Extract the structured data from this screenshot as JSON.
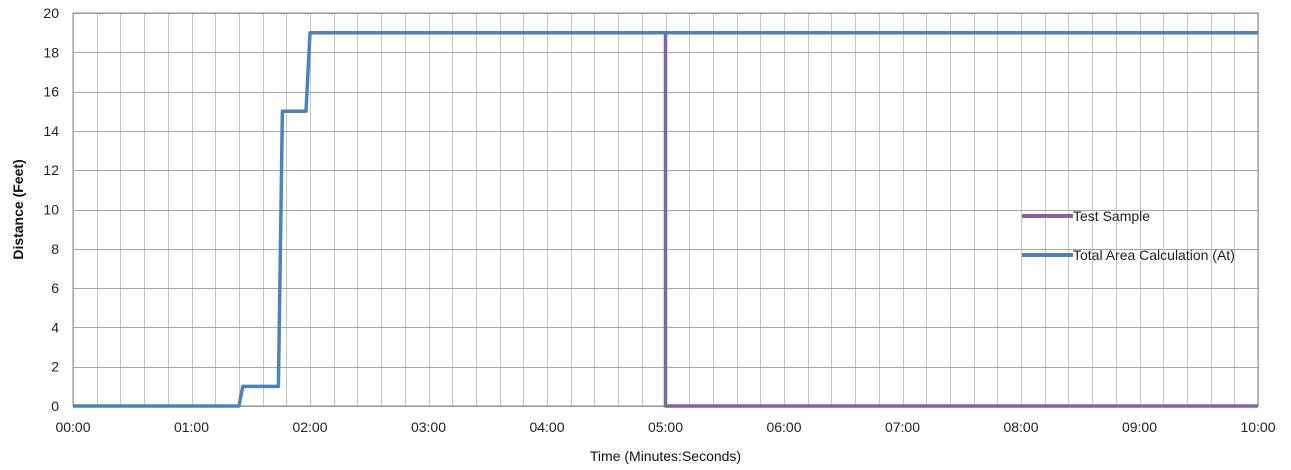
{
  "chart_data": {
    "type": "line",
    "title": "",
    "xlabel": "Time (Minutes:Seconds)",
    "ylabel": "Distance (Feet)",
    "xlim": [
      0,
      600
    ],
    "ylim": [
      0,
      20
    ],
    "x_tick_labels": [
      "00:00",
      "01:00",
      "02:00",
      "03:00",
      "04:00",
      "05:00",
      "06:00",
      "07:00",
      "08:00",
      "09:00",
      "10:00"
    ],
    "y_tick_labels": [
      "0",
      "2",
      "4",
      "6",
      "8",
      "10",
      "12",
      "14",
      "16",
      "18",
      "20"
    ],
    "grid": true,
    "legend_position": "right",
    "series": [
      {
        "name": "Test Sample",
        "color": "#8064A2",
        "x": [
          300,
          300,
          600
        ],
        "y": [
          19,
          0,
          0
        ]
      },
      {
        "name": "Total Area Calculation (At)",
        "color": "#4F81BD",
        "x": [
          0,
          84,
          86,
          104,
          106,
          118,
          120,
          600
        ],
        "y": [
          0,
          0,
          1,
          1,
          15,
          15,
          19,
          19
        ]
      }
    ]
  }
}
